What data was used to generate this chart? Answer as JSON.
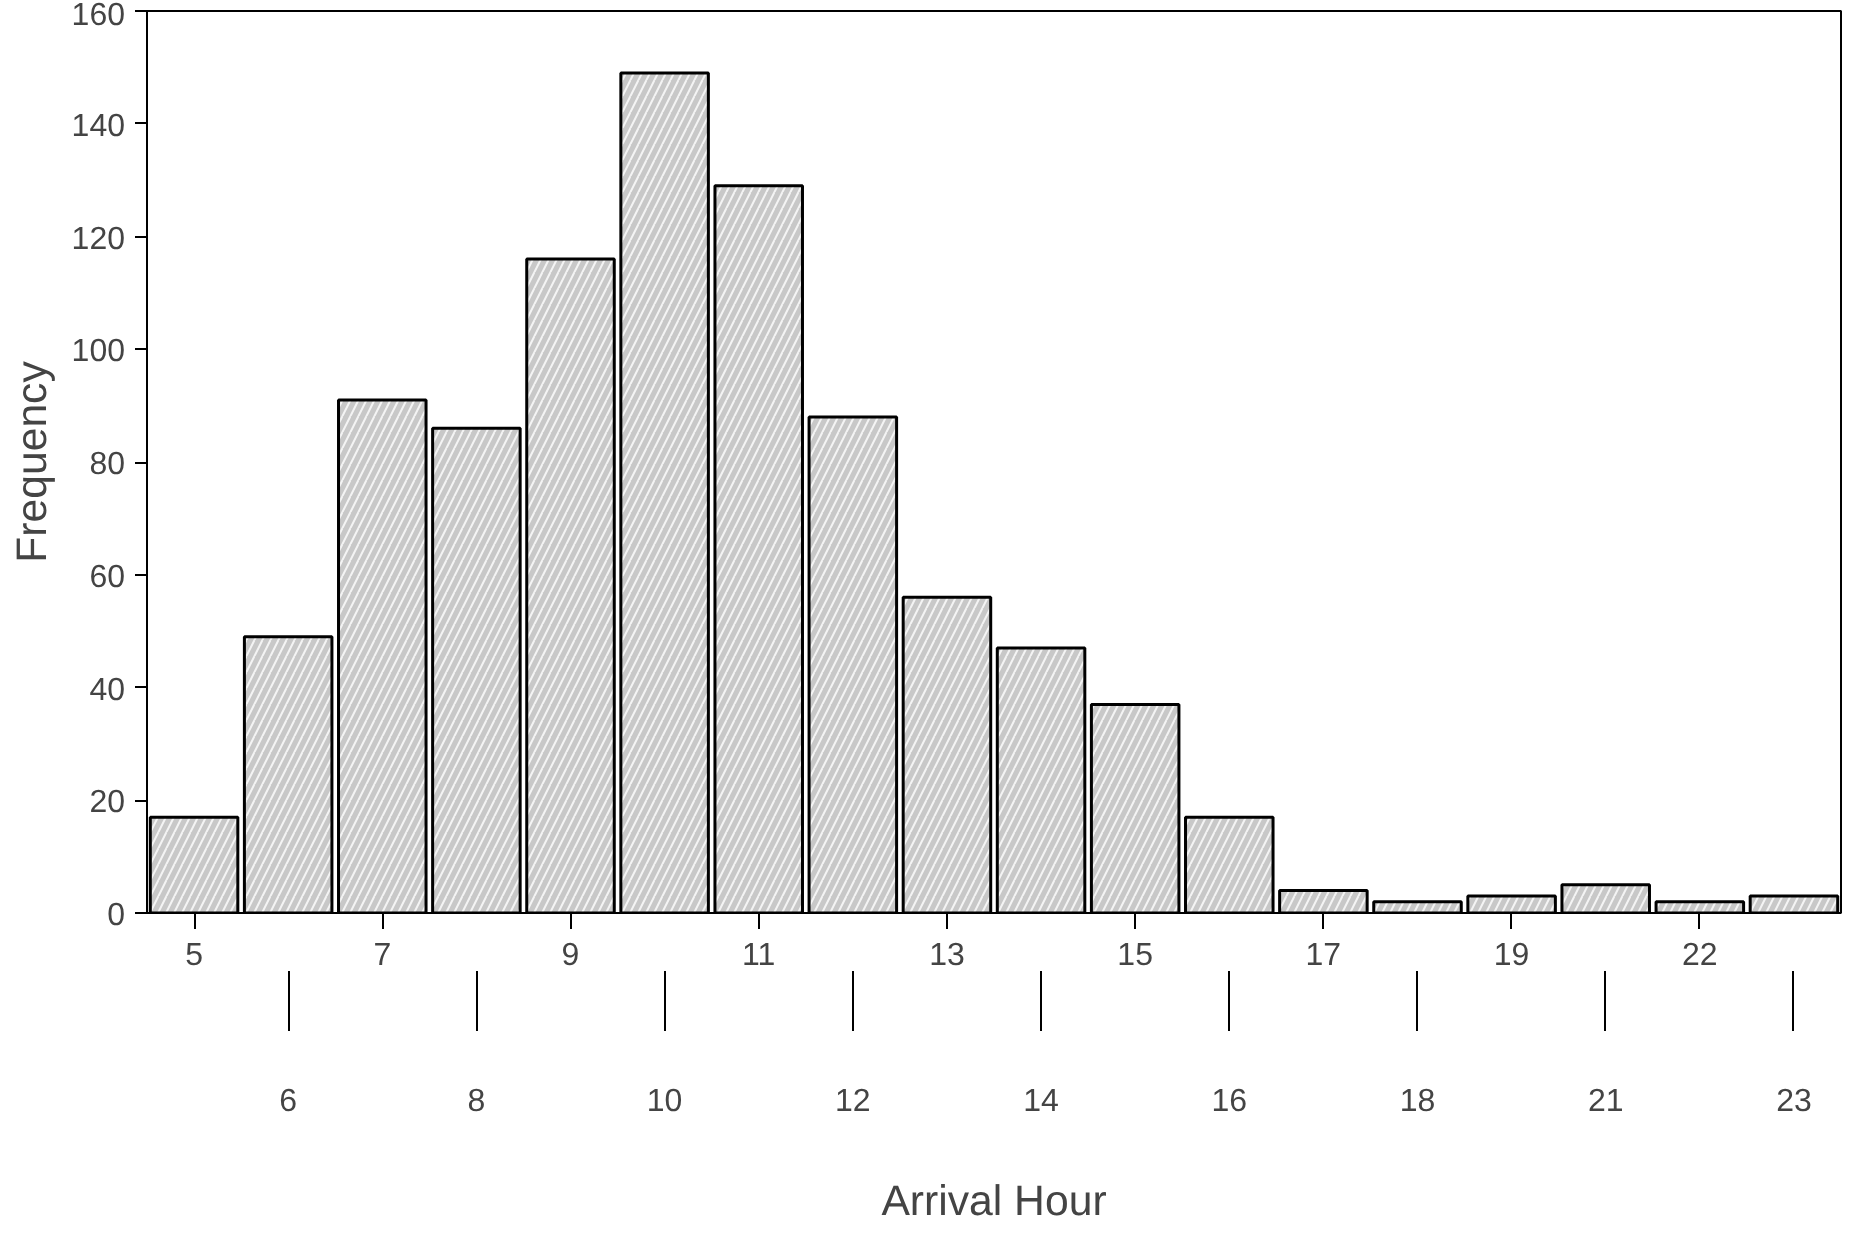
{
  "chart_data": {
    "type": "bar",
    "xlabel": "Arrival Hour",
    "ylabel": "Frequency",
    "categories": [
      "5",
      "6",
      "7",
      "8",
      "9",
      "10",
      "11",
      "12",
      "13",
      "14",
      "15",
      "16",
      "17",
      "18",
      "19",
      "21",
      "22",
      "23"
    ],
    "values": [
      17,
      49,
      91,
      86,
      116,
      149,
      129,
      88,
      56,
      47,
      37,
      17,
      4,
      2,
      3,
      5,
      2,
      3
    ],
    "color": "#c8c8c8",
    "ylim": [
      0,
      160
    ],
    "yticks": [
      0,
      20,
      40,
      60,
      80,
      100,
      120,
      140,
      160
    ],
    "grid": false
  }
}
